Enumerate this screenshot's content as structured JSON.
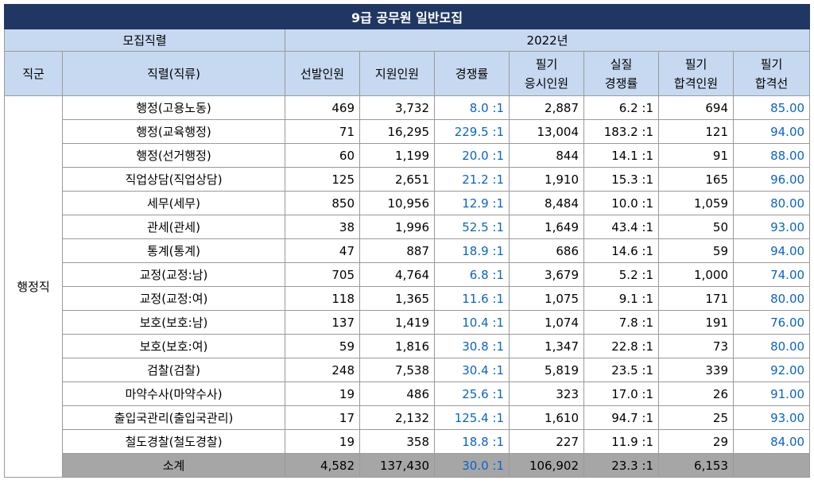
{
  "title": "9급 공무원 일반모집",
  "header": {
    "job_group_label": "모집직렬",
    "year_label": "2022년",
    "columns": [
      "직군",
      "직렬(직류)",
      "선발인원",
      "지원인원",
      "경쟁률",
      "필기 응시인원",
      "실질 경쟁률",
      "필기 합격인원",
      "필기 합격선"
    ]
  },
  "group_name": "행정직",
  "rows": [
    {
      "name": "행정(고용노동)",
      "selected": "469",
      "applicants": "3,732",
      "ratio": "8.0 :1",
      "exam_takers": "2,887",
      "real_ratio": "6.2 :1",
      "passed": "694",
      "cutoff": "85.00"
    },
    {
      "name": "행정(교육행정)",
      "selected": "71",
      "applicants": "16,295",
      "ratio": "229.5 :1",
      "exam_takers": "13,004",
      "real_ratio": "183.2 :1",
      "passed": "121",
      "cutoff": "94.00"
    },
    {
      "name": "행정(선거행정)",
      "selected": "60",
      "applicants": "1,199",
      "ratio": "20.0 :1",
      "exam_takers": "844",
      "real_ratio": "14.1 :1",
      "passed": "91",
      "cutoff": "88.00"
    },
    {
      "name": "직업상담(직업상담)",
      "selected": "125",
      "applicants": "2,651",
      "ratio": "21.2 :1",
      "exam_takers": "1,910",
      "real_ratio": "15.3 :1",
      "passed": "165",
      "cutoff": "96.00"
    },
    {
      "name": "세무(세무)",
      "selected": "850",
      "applicants": "10,956",
      "ratio": "12.9 :1",
      "exam_takers": "8,484",
      "real_ratio": "10.0 :1",
      "passed": "1,059",
      "cutoff": "80.00"
    },
    {
      "name": "관세(관세)",
      "selected": "38",
      "applicants": "1,996",
      "ratio": "52.5 :1",
      "exam_takers": "1,649",
      "real_ratio": "43.4 :1",
      "passed": "50",
      "cutoff": "93.00"
    },
    {
      "name": "통계(통계)",
      "selected": "47",
      "applicants": "887",
      "ratio": "18.9 :1",
      "exam_takers": "686",
      "real_ratio": "14.6 :1",
      "passed": "59",
      "cutoff": "94.00"
    },
    {
      "name": "교정(교정:남)",
      "selected": "705",
      "applicants": "4,764",
      "ratio": "6.8 :1",
      "exam_takers": "3,679",
      "real_ratio": "5.2 :1",
      "passed": "1,000",
      "cutoff": "74.00"
    },
    {
      "name": "교정(교정:여)",
      "selected": "118",
      "applicants": "1,365",
      "ratio": "11.6 :1",
      "exam_takers": "1,075",
      "real_ratio": "9.1 :1",
      "passed": "171",
      "cutoff": "80.00"
    },
    {
      "name": "보호(보호:남)",
      "selected": "137",
      "applicants": "1,419",
      "ratio": "10.4 :1",
      "exam_takers": "1,074",
      "real_ratio": "7.8 :1",
      "passed": "191",
      "cutoff": "76.00"
    },
    {
      "name": "보호(보호:여)",
      "selected": "59",
      "applicants": "1,816",
      "ratio": "30.8 :1",
      "exam_takers": "1,347",
      "real_ratio": "22.8 :1",
      "passed": "73",
      "cutoff": "80.00"
    },
    {
      "name": "검찰(검찰)",
      "selected": "248",
      "applicants": "7,538",
      "ratio": "30.4 :1",
      "exam_takers": "5,819",
      "real_ratio": "23.5 :1",
      "passed": "339",
      "cutoff": "92.00"
    },
    {
      "name": "마약수사(마약수사)",
      "selected": "19",
      "applicants": "486",
      "ratio": "25.6 :1",
      "exam_takers": "323",
      "real_ratio": "17.0 :1",
      "passed": "26",
      "cutoff": "91.00"
    },
    {
      "name": "출입국관리(출입국관리)",
      "selected": "17",
      "applicants": "2,132",
      "ratio": "125.4 :1",
      "exam_takers": "1,610",
      "real_ratio": "94.7 :1",
      "passed": "25",
      "cutoff": "93.00"
    },
    {
      "name": "철도경찰(철도경찰)",
      "selected": "19",
      "applicants": "358",
      "ratio": "18.8 :1",
      "exam_takers": "227",
      "real_ratio": "11.9 :1",
      "passed": "29",
      "cutoff": "84.00"
    }
  ],
  "subtotal": {
    "name": "소계",
    "selected": "4,582",
    "applicants": "137,430",
    "ratio": "30.0 :1",
    "exam_takers": "106,902",
    "real_ratio": "23.3 :1",
    "passed": "6,153",
    "cutoff": ""
  },
  "colors": {
    "title_bg": "#203764",
    "header_bg": "#c6d9f1",
    "subtotal_bg": "#a6a6a6",
    "accent_blue": "#0b63c9"
  }
}
